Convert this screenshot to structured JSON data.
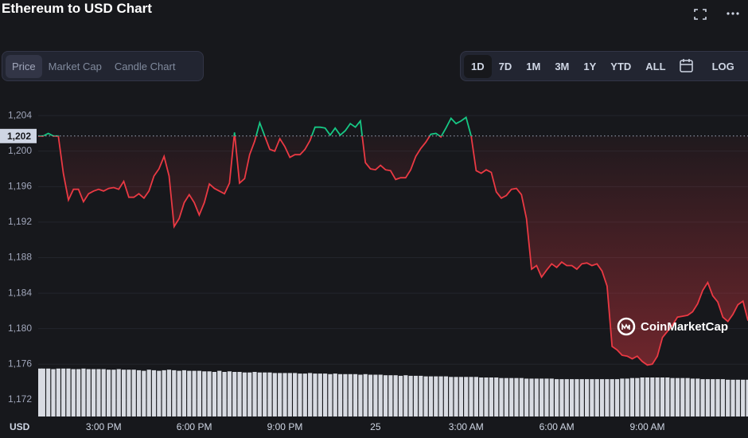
{
  "chart_data": {
    "type": "line",
    "title": "Ethereum to USD Chart",
    "y_axis_label": "USD",
    "watermark": "CoinMarketCap",
    "x": [
      770,
      780,
      790,
      800,
      810,
      820,
      830,
      840,
      850,
      860,
      870,
      880,
      890,
      900,
      910,
      920,
      930,
      940,
      950,
      960,
      970,
      980,
      990,
      1000,
      1010,
      1020,
      1030,
      1040,
      1050,
      1060,
      1070,
      1080,
      1090,
      1100,
      1110,
      1120,
      1130,
      1140,
      1150,
      1160,
      1170,
      1180,
      1190,
      1200,
      1210,
      1220,
      1230,
      1240,
      1250,
      1260,
      1270,
      1280,
      1290,
      1300,
      1310,
      1320,
      1330,
      1340,
      1350,
      1360,
      1370,
      1380,
      1390,
      1400,
      1410,
      1420,
      1430,
      1440,
      1450,
      1460,
      1470,
      1480,
      1490,
      1500,
      1510,
      1520,
      1530,
      1540,
      1550,
      1560,
      1570,
      1580,
      1590,
      1600,
      1610,
      1620,
      1630,
      1640,
      1650,
      1660,
      1670,
      1680,
      1690,
      1700,
      1710,
      1720,
      1730,
      1740,
      1750,
      1760,
      1770,
      1780,
      1790,
      1800,
      1810,
      1820,
      1830,
      1840,
      1850,
      1860,
      1870,
      1880,
      1890,
      1900,
      1910,
      1920,
      1930,
      1940,
      1950,
      1960,
      1970,
      1980,
      1990,
      2000,
      2010,
      2020,
      2030,
      2040,
      2050,
      2060,
      2070,
      2080,
      2090,
      2100,
      2110,
      2120,
      2130,
      2140,
      2150,
      2160,
      2170,
      2180
    ],
    "values": [
      1201.7,
      1201.7,
      1202.0,
      1201.7,
      1201.7,
      1197.5,
      1194.5,
      1195.7,
      1195.7,
      1194.3,
      1195.2,
      1195.5,
      1195.7,
      1195.5,
      1195.8,
      1195.9,
      1195.7,
      1196.6,
      1194.8,
      1194.8,
      1195.2,
      1194.7,
      1195.5,
      1197.2,
      1198.0,
      1199.4,
      1197.2,
      1191.5,
      1192.4,
      1194.2,
      1195.1,
      1194.2,
      1192.8,
      1194.2,
      1196.3,
      1195.8,
      1195.5,
      1195.2,
      1196.4,
      1202.1,
      1196.4,
      1196.9,
      1199.6,
      1201.1,
      1203.2,
      1201.7,
      1200.2,
      1200.0,
      1201.4,
      1200.5,
      1199.3,
      1199.6,
      1199.6,
      1200.2,
      1201.2,
      1202.7,
      1202.7,
      1202.6,
      1201.8,
      1202.6,
      1201.8,
      1202.3,
      1203.1,
      1202.7,
      1203.4,
      1198.7,
      1198.0,
      1197.9,
      1198.4,
      1197.9,
      1197.8,
      1196.8,
      1197.0,
      1197.0,
      1197.9,
      1199.4,
      1200.3,
      1201.0,
      1201.9,
      1202.0,
      1201.6,
      1202.6,
      1203.7,
      1203.1,
      1203.4,
      1203.8,
      1201.7,
      1197.8,
      1197.5,
      1197.9,
      1197.6,
      1195.4,
      1194.7,
      1195.0,
      1195.7,
      1195.8,
      1195.1,
      1192.4,
      1186.7,
      1187.1,
      1185.8,
      1186.6,
      1187.3,
      1186.9,
      1187.5,
      1187.1,
      1187.1,
      1186.7,
      1187.3,
      1187.4,
      1187.1,
      1187.3,
      1186.5,
      1184.8,
      1178.0,
      1177.6,
      1177.0,
      1176.9,
      1176.6,
      1176.9,
      1176.3,
      1175.9,
      1176.0,
      1176.9,
      1179.0,
      1179.7,
      1180.4,
      1181.3,
      1181.4,
      1181.5,
      1181.9,
      1182.8,
      1184.3,
      1185.2,
      1183.7,
      1183.0,
      1181.3,
      1180.8,
      1181.6,
      1182.7,
      1183.1,
      1180.9
    ],
    "colors": {
      "above": "#16c784",
      "below": "#ea3943"
    },
    "reference": {
      "value": 1201.7,
      "label": "1,202"
    },
    "xlim": [
      770,
      2180
    ],
    "xticks": [
      {
        "value": 900,
        "label": "3:00 PM"
      },
      {
        "value": 1080,
        "label": "6:00 PM"
      },
      {
        "value": 1260,
        "label": "9:00 PM"
      },
      {
        "value": 1440,
        "label": "25"
      },
      {
        "value": 1620,
        "label": "3:00 AM"
      },
      {
        "value": 1800,
        "label": "6:00 AM"
      },
      {
        "value": 1980,
        "label": "9:00 AM"
      }
    ],
    "ylim": [
      1170.1,
      1205.9
    ],
    "yticks": [
      {
        "value": 1172,
        "label": "1,172"
      },
      {
        "value": 1176,
        "label": "1,176"
      },
      {
        "value": 1180,
        "label": "1,180"
      },
      {
        "value": 1184,
        "label": "1,184"
      },
      {
        "value": 1188,
        "label": "1,188"
      },
      {
        "value": 1192,
        "label": "1,192"
      },
      {
        "value": 1196,
        "label": "1,196"
      },
      {
        "value": 1200,
        "label": "1,200"
      },
      {
        "value": 1204,
        "label": "1,204"
      }
    ],
    "grid": true,
    "volume": {
      "color": "#d8dbe2",
      "ylim": [
        0,
        100
      ],
      "values": [
        86,
        86,
        86,
        85,
        86,
        86,
        86,
        85,
        85,
        86,
        85,
        85,
        85,
        85,
        84,
        84,
        85,
        84,
        84,
        84,
        83,
        82,
        84,
        83,
        82,
        83,
        84,
        83,
        82,
        83,
        82,
        82,
        82,
        81,
        81,
        80,
        82,
        80,
        81,
        80,
        80,
        79,
        79,
        80,
        79,
        79,
        79,
        78,
        78,
        78,
        78,
        78,
        77,
        77,
        78,
        77,
        77,
        77,
        76,
        77,
        76,
        76,
        76,
        76,
        75,
        76,
        75,
        75,
        75,
        74,
        74,
        74,
        73,
        74,
        73,
        73,
        73,
        72,
        72,
        72,
        72,
        72,
        71,
        71,
        71,
        71,
        71,
        71,
        70,
        70,
        70,
        70,
        69,
        69,
        69,
        69,
        69,
        68,
        68,
        68,
        68,
        68,
        68,
        67,
        67,
        67,
        67,
        67,
        67,
        67,
        67,
        67,
        67,
        67,
        67,
        67,
        68,
        68,
        69,
        69,
        70,
        70,
        70,
        70,
        70,
        70,
        69,
        69,
        69,
        69,
        68,
        68,
        67,
        67,
        67,
        67,
        67,
        66,
        66,
        66,
        66,
        66
      ]
    }
  },
  "ui": {
    "tabs": [
      "Price",
      "Market Cap",
      "Candle Chart"
    ],
    "ranges": [
      "1D",
      "7D",
      "1M",
      "3M",
      "1Y",
      "YTD",
      "ALL"
    ],
    "log": "LOG"
  }
}
